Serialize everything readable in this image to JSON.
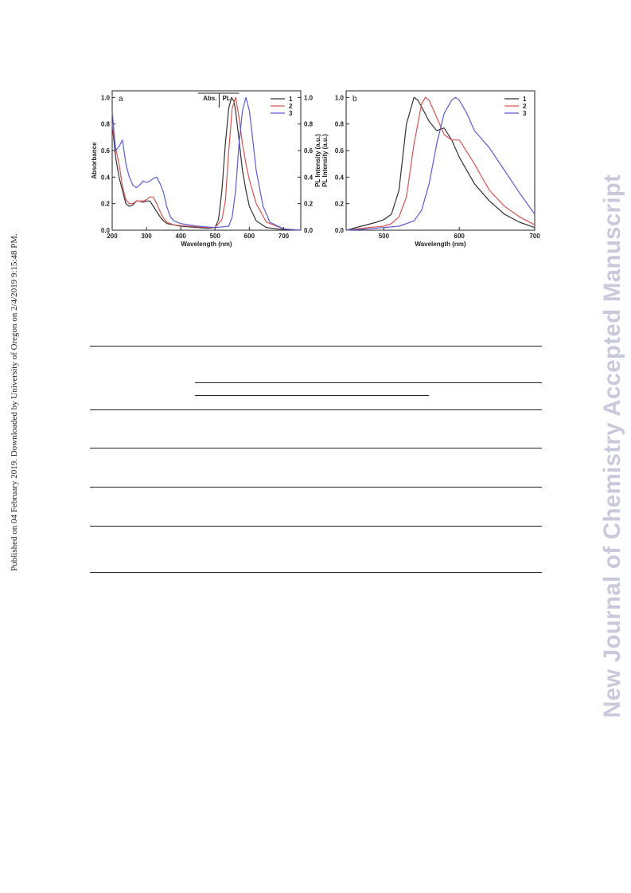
{
  "side_note": "Published on 04 February 2019. Downloaded by University of Oregon on 2/4/2019 9:15:48 PM.",
  "watermark": "New Journal of Chemistry Accepted Manuscript",
  "colors": {
    "s1": "#333333",
    "s2": "#d9534f",
    "s3": "#5b5bd6"
  },
  "chart_data": [
    {
      "type": "line",
      "panel_label": "a",
      "xlabel": "Wavelength (nm)",
      "ylabel": "Absorbance",
      "y2label": "PL Intensity (a.u.)",
      "xlim": [
        200,
        750
      ],
      "ylim": [
        0,
        1.05
      ],
      "xticks": [
        200,
        300,
        400,
        500,
        600,
        700
      ],
      "yticks": [
        0.0,
        0.2,
        0.4,
        0.6,
        0.8,
        1.0
      ],
      "y2ticks": [
        0.0,
        0.2,
        0.4,
        0.6,
        0.8,
        1.0
      ],
      "annotations": [
        "Abs.",
        "PL"
      ],
      "legend": [
        "1",
        "2",
        "3"
      ],
      "legend_position": "top-right",
      "series": [
        {
          "name": "1",
          "color": "s1",
          "x": [
            200,
            210,
            220,
            230,
            240,
            250,
            260,
            270,
            280,
            290,
            300,
            310,
            320,
            330,
            340,
            350,
            360,
            380,
            400,
            450,
            480,
            500,
            510,
            520,
            530,
            540,
            548,
            555,
            560,
            570,
            580,
            590,
            600,
            620,
            650,
            700,
            750
          ],
          "y": [
            0.8,
            0.55,
            0.4,
            0.3,
            0.2,
            0.18,
            0.19,
            0.22,
            0.22,
            0.21,
            0.22,
            0.22,
            0.18,
            0.14,
            0.1,
            0.07,
            0.05,
            0.04,
            0.03,
            0.02,
            0.015,
            0.02,
            0.08,
            0.3,
            0.65,
            0.92,
            1.0,
            0.97,
            0.9,
            0.68,
            0.45,
            0.3,
            0.18,
            0.07,
            0.02,
            0.005,
            0.0
          ]
        },
        {
          "name": "2",
          "color": "s2",
          "x": [
            200,
            210,
            220,
            230,
            240,
            250,
            260,
            270,
            280,
            290,
            300,
            310,
            320,
            330,
            340,
            350,
            360,
            380,
            400,
            450,
            480,
            500,
            520,
            530,
            540,
            550,
            560,
            570,
            580,
            590,
            600,
            620,
            650,
            700,
            750
          ],
          "y": [
            0.8,
            0.62,
            0.5,
            0.33,
            0.23,
            0.2,
            0.2,
            0.22,
            0.22,
            0.22,
            0.23,
            0.25,
            0.25,
            0.2,
            0.14,
            0.09,
            0.06,
            0.04,
            0.035,
            0.025,
            0.02,
            0.02,
            0.08,
            0.22,
            0.6,
            0.92,
            1.0,
            0.85,
            0.65,
            0.5,
            0.38,
            0.2,
            0.06,
            0.01,
            0.0
          ]
        },
        {
          "name": "3",
          "color": "s3",
          "x": [
            200,
            210,
            220,
            230,
            240,
            250,
            260,
            270,
            280,
            290,
            300,
            310,
            320,
            330,
            340,
            350,
            360,
            370,
            380,
            400,
            450,
            500,
            540,
            550,
            560,
            570,
            580,
            590,
            600,
            610,
            620,
            640,
            660,
            700,
            750
          ],
          "y": [
            0.9,
            0.6,
            0.63,
            0.68,
            0.5,
            0.4,
            0.34,
            0.32,
            0.34,
            0.37,
            0.36,
            0.37,
            0.39,
            0.4,
            0.35,
            0.28,
            0.17,
            0.1,
            0.07,
            0.05,
            0.03,
            0.02,
            0.03,
            0.1,
            0.3,
            0.65,
            0.9,
            1.0,
            0.9,
            0.68,
            0.45,
            0.18,
            0.06,
            0.01,
            0.0
          ]
        }
      ]
    },
    {
      "type": "line",
      "panel_label": "b",
      "xlabel": "Wavelength (nm)",
      "ylabel": "PL Intensity (a.u.)",
      "xlim": [
        450,
        700
      ],
      "ylim": [
        0,
        1.05
      ],
      "xticks": [
        500,
        600,
        700
      ],
      "yticks": [
        0.0,
        0.2,
        0.4,
        0.6,
        0.8,
        1.0
      ],
      "legend": [
        "1",
        "2",
        "3"
      ],
      "legend_position": "top-right",
      "series": [
        {
          "name": "1",
          "color": "s1",
          "x": [
            450,
            470,
            490,
            500,
            510,
            520,
            530,
            540,
            545,
            550,
            560,
            570,
            580,
            590,
            600,
            620,
            640,
            660,
            680,
            700
          ],
          "y": [
            0.0,
            0.03,
            0.06,
            0.08,
            0.12,
            0.3,
            0.8,
            1.0,
            0.98,
            0.93,
            0.82,
            0.75,
            0.77,
            0.68,
            0.55,
            0.35,
            0.22,
            0.12,
            0.06,
            0.02
          ]
        },
        {
          "name": "2",
          "color": "s2",
          "x": [
            450,
            480,
            500,
            510,
            520,
            530,
            540,
            550,
            555,
            560,
            570,
            580,
            590,
            600,
            620,
            640,
            660,
            680,
            700
          ],
          "y": [
            0.0,
            0.02,
            0.03,
            0.05,
            0.1,
            0.25,
            0.65,
            0.95,
            1.0,
            0.98,
            0.85,
            0.72,
            0.68,
            0.68,
            0.5,
            0.3,
            0.18,
            0.1,
            0.04
          ]
        },
        {
          "name": "3",
          "color": "s3",
          "x": [
            450,
            480,
            500,
            520,
            540,
            550,
            560,
            570,
            580,
            590,
            595,
            600,
            610,
            620,
            640,
            660,
            680,
            700
          ],
          "y": [
            0.0,
            0.01,
            0.02,
            0.03,
            0.07,
            0.15,
            0.35,
            0.65,
            0.88,
            0.98,
            1.0,
            0.98,
            0.88,
            0.75,
            0.62,
            0.45,
            0.28,
            0.12
          ]
        }
      ]
    }
  ]
}
